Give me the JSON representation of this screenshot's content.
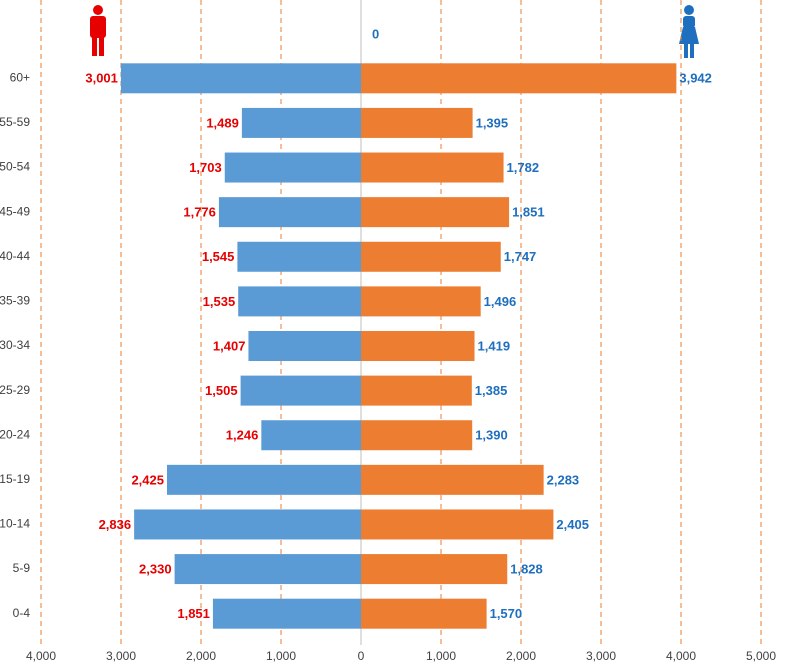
{
  "chart_data": {
    "type": "pyramid",
    "categories": [
      "60+",
      "55-59",
      "50-54",
      "45-49",
      "40-44",
      "35-39",
      "30-34",
      "25-29",
      "20-24",
      "15-19",
      "10-14",
      "5-9",
      "0-4"
    ],
    "series": [
      {
        "name": "male",
        "color": "#5b9bd5",
        "label_color": "#e60000",
        "values": [
          -3001,
          -1489,
          -1703,
          -1776,
          -1545,
          -1535,
          -1407,
          -1505,
          -1246,
          -2425,
          -2836,
          -2330,
          -1851
        ],
        "value_labels": [
          "3,001",
          "1,489",
          "1,703",
          "1,776",
          "1,545",
          "1,535",
          "1,407",
          "1,505",
          "1,246",
          "2,425",
          "2,836",
          "2,330",
          "1,851"
        ]
      },
      {
        "name": "female",
        "color": "#ed7d31",
        "label_color": "#1f6fbf",
        "values": [
          3942,
          1395,
          1782,
          1851,
          1747,
          1496,
          1419,
          1385,
          1390,
          2283,
          2405,
          1828,
          1570
        ],
        "value_labels": [
          "3,942",
          "1,395",
          "1,782",
          "1,851",
          "1,747",
          "1,496",
          "1,419",
          "1,385",
          "1,390",
          "2,283",
          "2,405",
          "1,828",
          "1,570"
        ]
      }
    ],
    "annotation": "0",
    "xlim": [
      -4000,
      5000
    ],
    "xticks": [
      {
        "value": -4000,
        "label": "4,000"
      },
      {
        "value": -3000,
        "label": "3,000"
      },
      {
        "value": -2000,
        "label": "2,000"
      },
      {
        "value": -1000,
        "label": "1,000"
      },
      0,
      {
        "value": 1000,
        "label": "1,000"
      },
      {
        "value": 2000,
        "label": "2,000"
      },
      {
        "value": 3000,
        "label": "3,000"
      },
      {
        "value": 4000,
        "label": "4,000"
      },
      {
        "value": 5000,
        "label": "5,000"
      }
    ],
    "grid": true,
    "grid_color": "#ed7d31"
  }
}
